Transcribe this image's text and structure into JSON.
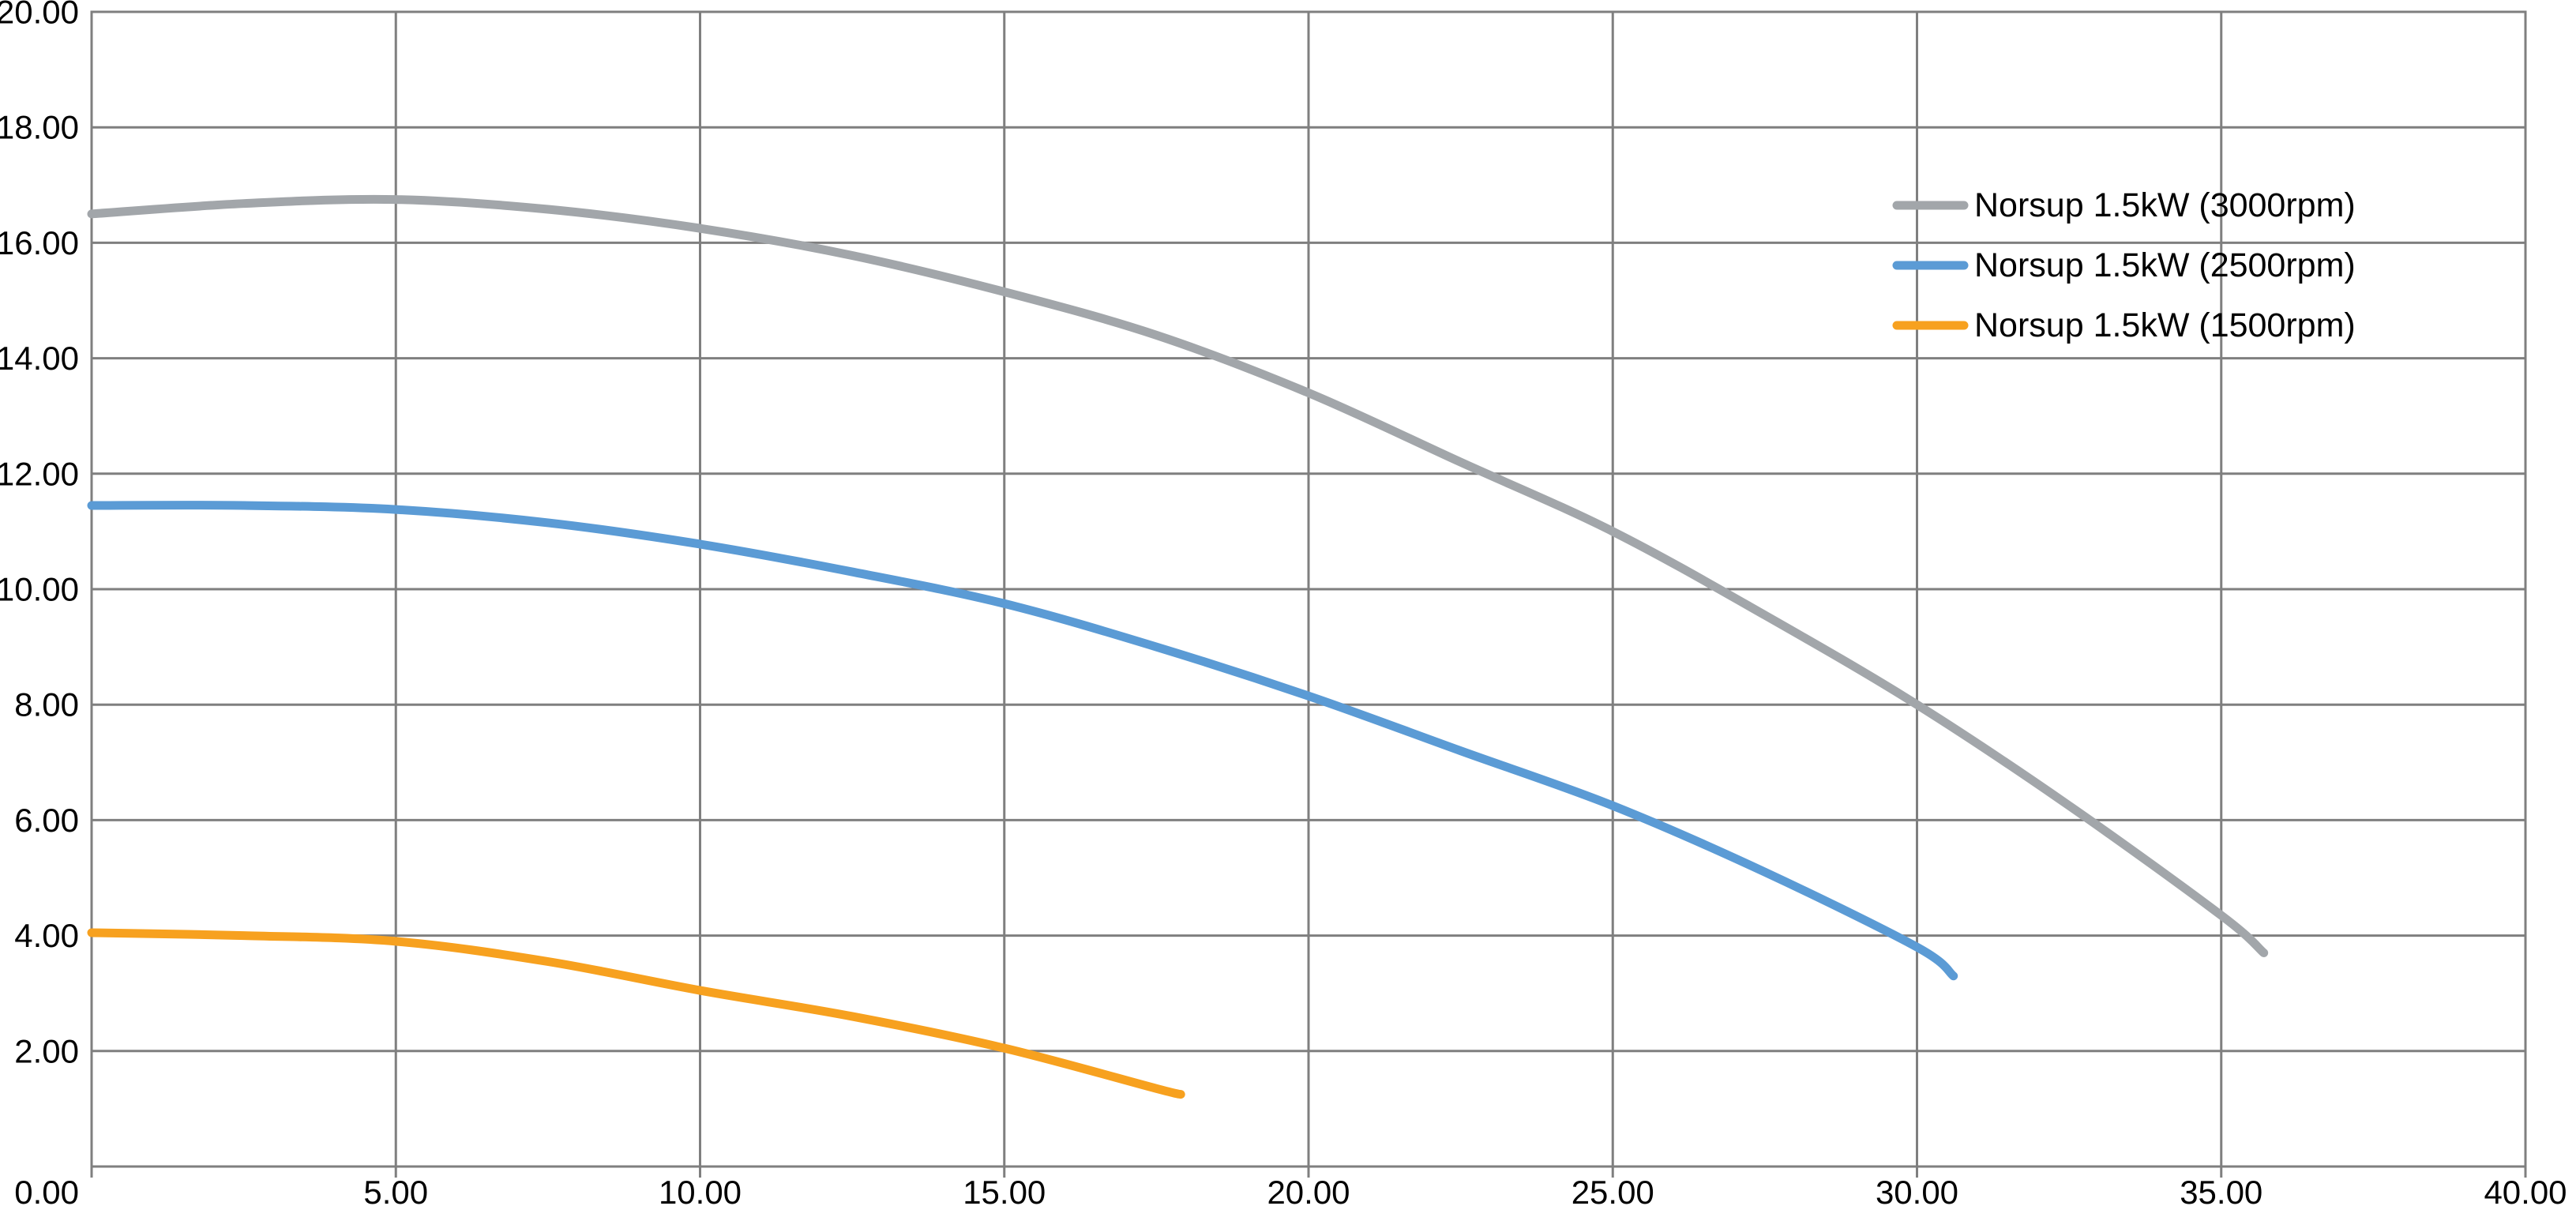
{
  "chart_data": {
    "type": "line",
    "title": "",
    "xlabel": "",
    "ylabel": "",
    "xlim": [
      0,
      40
    ],
    "ylim": [
      0,
      20
    ],
    "x_ticks": [
      0,
      5,
      10,
      15,
      20,
      25,
      30,
      35,
      40
    ],
    "x_tick_labels": [
      "0.00",
      "5.00",
      "10.00",
      "15.00",
      "20.00",
      "25.00",
      "30.00",
      "35.00",
      "40.00"
    ],
    "y_ticks": [
      0,
      2,
      4,
      6,
      8,
      10,
      12,
      14,
      16,
      18,
      20
    ],
    "y_tick_labels": [
      "0.00",
      "2.00",
      "4.00",
      "6.00",
      "8.00",
      "10.00",
      "12.00",
      "14.00",
      "16.00",
      "18.00",
      "20.00"
    ],
    "grid": "both",
    "legend_position": "top-right-inside",
    "colors": {
      "background": "#FFFFFF",
      "gridline": "#7F7F7F",
      "axis_border": "#7F7F7F",
      "text": "#000000"
    },
    "series": [
      {
        "name": "Norsup 1.5kW (3000rpm)",
        "color": "#A2A6AA",
        "points": [
          [
            0,
            16.5
          ],
          [
            2.5,
            16.68
          ],
          [
            5,
            16.75
          ],
          [
            7.5,
            16.58
          ],
          [
            10,
            16.25
          ],
          [
            12.5,
            15.78
          ],
          [
            15,
            15.15
          ],
          [
            17.5,
            14.4
          ],
          [
            20,
            13.4
          ],
          [
            22.5,
            12.2
          ],
          [
            25,
            11.0
          ],
          [
            27.5,
            9.55
          ],
          [
            30,
            8.0
          ],
          [
            32.5,
            6.25
          ],
          [
            35,
            4.35
          ],
          [
            35.7,
            3.7
          ]
        ]
      },
      {
        "name": "Norsup 1.5kW (2500rpm)",
        "color": "#5B9BD5",
        "points": [
          [
            0,
            11.45
          ],
          [
            2.5,
            11.45
          ],
          [
            5,
            11.38
          ],
          [
            7.5,
            11.15
          ],
          [
            10,
            10.78
          ],
          [
            12.5,
            10.3
          ],
          [
            15,
            9.75
          ],
          [
            17.5,
            9.0
          ],
          [
            20,
            8.15
          ],
          [
            22.5,
            7.2
          ],
          [
            25,
            6.25
          ],
          [
            27.5,
            5.1
          ],
          [
            30,
            3.8
          ],
          [
            30.6,
            3.3
          ]
        ]
      },
      {
        "name": "Norsup 1.5kW (1500rpm)",
        "color": "#F7A11F",
        "points": [
          [
            0,
            4.05
          ],
          [
            2.5,
            4.0
          ],
          [
            5,
            3.9
          ],
          [
            7.5,
            3.55
          ],
          [
            10,
            3.05
          ],
          [
            12.5,
            2.6
          ],
          [
            15,
            2.05
          ],
          [
            17.5,
            1.35
          ],
          [
            17.9,
            1.25
          ]
        ]
      }
    ]
  }
}
